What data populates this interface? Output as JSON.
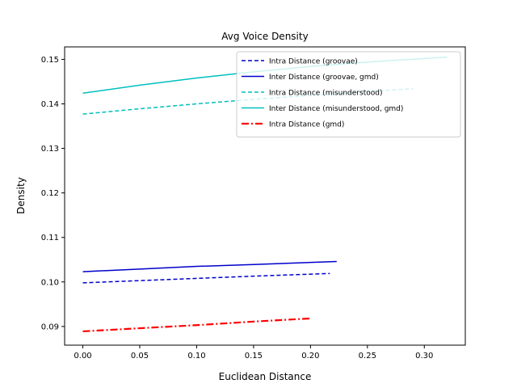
{
  "chart_data": {
    "type": "line",
    "title": "Avg Voice Density",
    "xlabel": "Euclidean Distance",
    "ylabel": "Density",
    "xlim": [
      -0.016,
      0.336
    ],
    "ylim": [
      0.0858,
      0.1528
    ],
    "x_ticks": [
      0.0,
      0.05,
      0.1,
      0.15,
      0.2,
      0.25,
      0.3
    ],
    "x_tick_labels": [
      "0.00",
      "0.05",
      "0.10",
      "0.15",
      "0.20",
      "0.25",
      "0.30"
    ],
    "y_ticks": [
      0.09,
      0.1,
      0.11,
      0.12,
      0.13,
      0.14,
      0.15
    ],
    "y_tick_labels": [
      "0.09",
      "0.10",
      "0.11",
      "0.12",
      "0.13",
      "0.14",
      "0.15"
    ],
    "grid": false,
    "legend_position": "top-right",
    "series": [
      {
        "name": "Intra Distance (groovae)",
        "color": "#0000cc",
        "style": "dashed",
        "x": [
          0.0,
          0.05,
          0.1,
          0.15,
          0.217
        ],
        "y": [
          0.0998,
          0.1003,
          0.1008,
          0.1013,
          0.1019
        ]
      },
      {
        "name": "Inter Distance (groovae, gmd)",
        "color": "#0000cc",
        "style": "solid",
        "x": [
          0.0,
          0.05,
          0.1,
          0.15,
          0.223
        ],
        "y": [
          0.1023,
          0.1029,
          0.1035,
          0.1039,
          0.1046
        ]
      },
      {
        "name": "Intra Distance (misunderstood)",
        "color": "#00bfbf",
        "style": "dashed",
        "x": [
          0.0,
          0.05,
          0.1,
          0.15,
          0.2,
          0.25,
          0.29
        ],
        "y": [
          0.1377,
          0.1389,
          0.14,
          0.141,
          0.1419,
          0.1428,
          0.1434
        ]
      },
      {
        "name": "Inter Distance (misunderstood, gmd)",
        "color": "#00bfbf",
        "style": "solid",
        "x": [
          0.0,
          0.05,
          0.1,
          0.15,
          0.2,
          0.25,
          0.32
        ],
        "y": [
          0.1424,
          0.1442,
          0.1458,
          0.1472,
          0.1484,
          0.1494,
          0.1505
        ]
      },
      {
        "name": "Intra Distance (gmd)",
        "color": "#ff0000",
        "style": "dashdot",
        "x": [
          0.0,
          0.05,
          0.1,
          0.15,
          0.2
        ],
        "y": [
          0.0889,
          0.0896,
          0.0903,
          0.0911,
          0.0918
        ]
      }
    ]
  }
}
